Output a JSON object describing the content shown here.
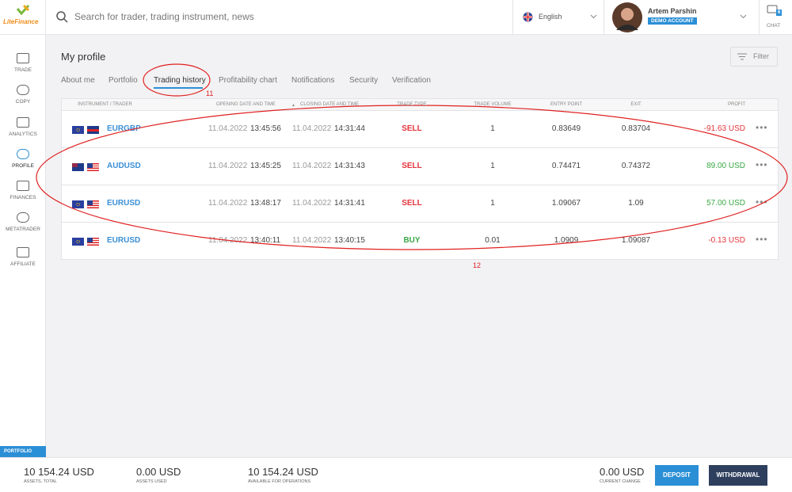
{
  "header": {
    "logo": "LiteFinance",
    "search_placeholder": "Search for trader, trading instrument, news",
    "language": "English",
    "user_name": "Artem Parshin",
    "account_badge": "DEMO ACCOUNT",
    "chat_count": "6",
    "chat_label": "CHAT"
  },
  "sidebar": {
    "items": [
      "TRADE",
      "COPY",
      "ANALYTICS",
      "PROFILE",
      "FINANCES",
      "METATRADER",
      "AFFILIATE"
    ],
    "portfolio_tab": "PORTFOLIO"
  },
  "page": {
    "title": "My profile",
    "filter": "Filter",
    "tabs": [
      "About me",
      "Portfolio",
      "Trading history",
      "Profitability chart",
      "Notifications",
      "Security",
      "Verification"
    ]
  },
  "annotations": [
    "11",
    "12"
  ],
  "table": {
    "columns": [
      "INSTRUMENT / TRADER",
      "OPENING DATE AND TIME",
      "CLOSING DATE AND TIME",
      "TRADE TYPE",
      "TRADE VOLUME",
      "ENTRY POINT",
      "EXIT",
      "PROFIT"
    ],
    "rows": [
      {
        "instrument": "EURGBP",
        "open_date": "11.04.2022",
        "open_time": "13:45:56",
        "close_date": "11.04.2022",
        "close_time": "14:31:44",
        "type": "SELL",
        "type_color": "#e3343d",
        "volume": "1",
        "entry": "0.83649",
        "exit": "0.83704",
        "profit": "-91.63 USD",
        "profit_color": "#e3343d"
      },
      {
        "instrument": "AUDUSD",
        "open_date": "11.04.2022",
        "open_time": "13:45:25",
        "close_date": "11.04.2022",
        "close_time": "14:31:43",
        "type": "SELL",
        "type_color": "#e3343d",
        "volume": "1",
        "entry": "0.74471",
        "exit": "0.74372",
        "profit": "89.00 USD",
        "profit_color": "#3aa845"
      },
      {
        "instrument": "EURUSD",
        "open_date": "11.04.2022",
        "open_time": "13:48:17",
        "close_date": "11.04.2022",
        "close_time": "14:31:41",
        "type": "SELL",
        "type_color": "#e3343d",
        "volume": "1",
        "entry": "1.09067",
        "exit": "1.09",
        "profit": "57.00 USD",
        "profit_color": "#3aa845"
      },
      {
        "instrument": "EURUSD",
        "open_date": "11.04.2022",
        "open_time": "13:40:11",
        "close_date": "11.04.2022",
        "close_time": "13:40:15",
        "type": "BUY",
        "type_color": "#3aa845",
        "volume": "0.01",
        "entry": "1.0909",
        "exit": "1.09087",
        "profit": "-0.13 USD",
        "profit_color": "#e3343d"
      }
    ]
  },
  "footer": {
    "stats": [
      {
        "value": "10 154.24 USD",
        "label": "ASSETS, TOTAL"
      },
      {
        "value": "0.00 USD",
        "label": "ASSETS USED"
      },
      {
        "value": "10 154.24 USD",
        "label": "AVAILABLE FOR OPERATIONS"
      },
      {
        "value": "0.00 USD",
        "label": "CURRENT CHANGE"
      }
    ],
    "deposit": "DEPOSIT",
    "withdrawal": "WITHDRAWAL"
  }
}
